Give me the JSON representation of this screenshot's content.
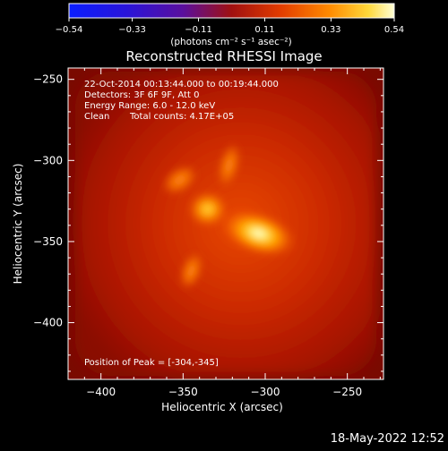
{
  "title": "Reconstructed RHESSI Image",
  "colorbar": {
    "tick_labels": [
      "−0.54",
      "−0.33",
      "−0.11",
      "0.11",
      "0.33",
      "0.54"
    ],
    "range": [
      -0.54,
      0.54
    ],
    "unit_label": "(photons cm⁻² s⁻¹ asec⁻²)",
    "colormap": "blue-purple-red-orange-yellow-white"
  },
  "info": {
    "line1": "22-Oct-2014 00:13:44.000 to 00:19:44.000",
    "line2": "Detectors: 3F 6F 9F, Att 0",
    "line3": "Energy Range: 6.0 - 12.0 keV",
    "line4_clean": "Clean",
    "line4_counts": "Total counts: 4.17E+05",
    "peak": "Position of Peak = [-304,-345]"
  },
  "footer_timestamp": "18-May-2022 12:52",
  "chart_data": {
    "type": "heatmap",
    "title": "Reconstructed RHESSI Image",
    "xlabel": "Heliocentric X (arcsec)",
    "ylabel": "Heliocentric Y (arcsec)",
    "xlim": [
      -420,
      -228
    ],
    "ylim": [
      -435,
      -243
    ],
    "x_ticks": [
      -400,
      -350,
      -300,
      -250
    ],
    "y_ticks": [
      -250,
      -300,
      -350,
      -400
    ],
    "x_tick_labels": [
      "−400",
      "−350",
      "−300",
      "−250"
    ],
    "y_tick_labels": [
      "−250",
      "−300",
      "−350",
      "−400"
    ],
    "peak": [
      -304,
      -345
    ],
    "peak_value": 0.54,
    "sources": [
      {
        "x": -304,
        "y": -345,
        "value": 0.54
      },
      {
        "x": -335,
        "y": -330,
        "value": 0.38
      },
      {
        "x": -352,
        "y": -312,
        "value": 0.24
      },
      {
        "x": -322,
        "y": -303,
        "value": 0.22
      },
      {
        "x": -345,
        "y": -368,
        "value": 0.21
      }
    ]
  }
}
